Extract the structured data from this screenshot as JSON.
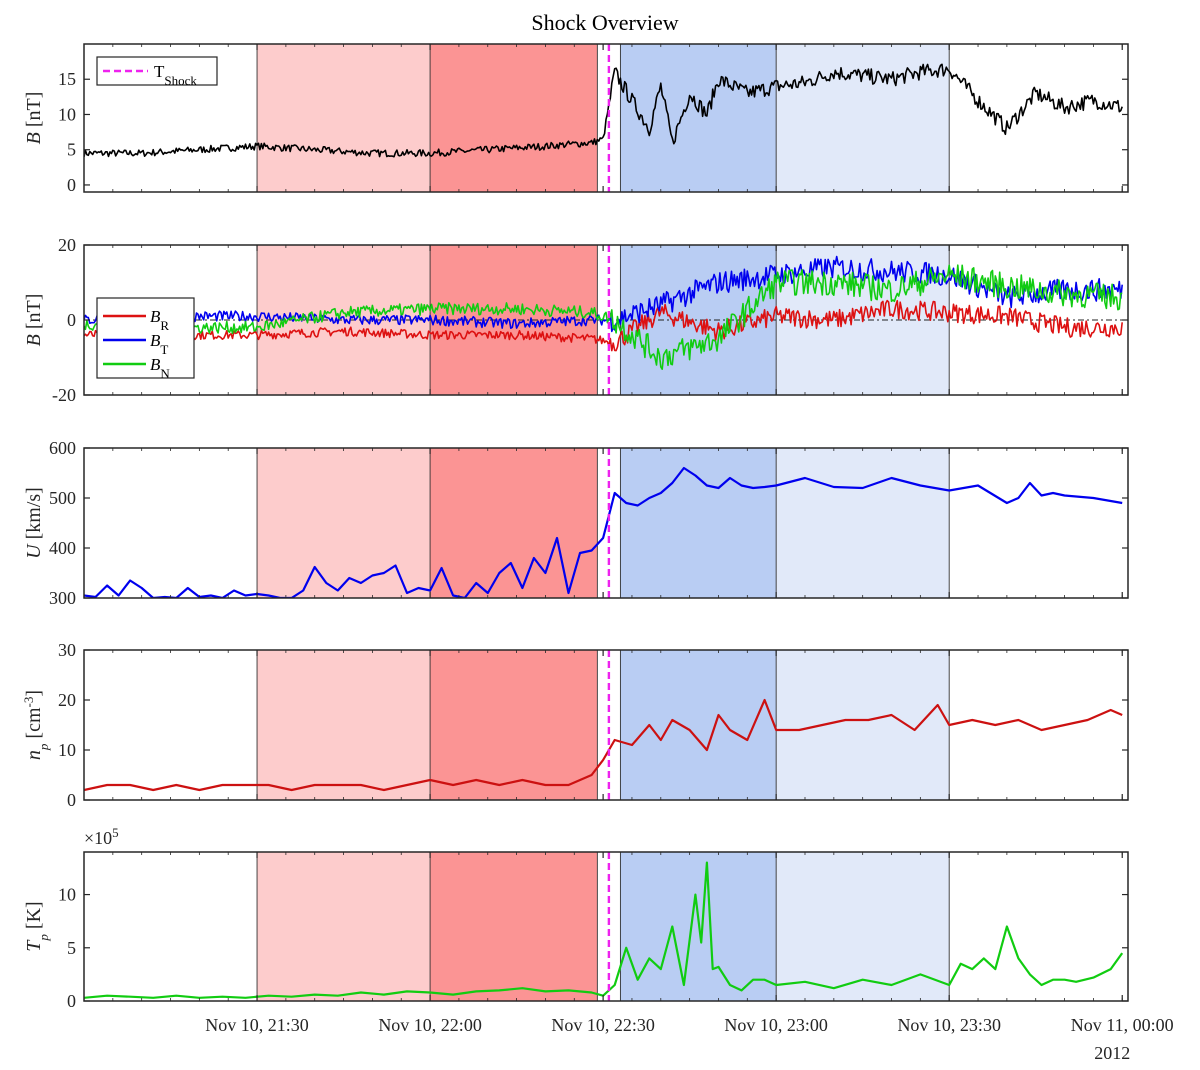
{
  "chart_data": {
    "type": "line",
    "title": "Shock Overview",
    "x_range": [
      "2012-11-10 21:00",
      "2012-11-11 00:01"
    ],
    "x_ticks": [
      {
        "t": "2012-11-10 21:30",
        "label": "Nov 10, 21:30"
      },
      {
        "t": "2012-11-10 22:00",
        "label": "Nov 10, 22:00"
      },
      {
        "t": "2012-11-10 22:30",
        "label": "Nov 10, 22:30"
      },
      {
        "t": "2012-11-10 23:00",
        "label": "Nov 10, 23:00"
      },
      {
        "t": "2012-11-10 23:30",
        "label": "Nov 10, 23:30"
      },
      {
        "t": "2012-11-11 00:00",
        "label": "Nov 11, 00:00"
      }
    ],
    "x_year_label": "2012",
    "shock_time": "2012-11-10 22:31",
    "shock_legend": "T",
    "shock_legend_sub": "Shock",
    "shock_color": "#ee22ee",
    "regions": [
      {
        "start": "2012-11-10 21:30",
        "end": "2012-11-10 22:00",
        "color": "#fdcccc"
      },
      {
        "start": "2012-11-10 22:00",
        "end": "2012-11-10 22:29",
        "color": "#fb9494"
      },
      {
        "start": "2012-11-10 22:33",
        "end": "2012-11-10 23:00",
        "color": "#b9cdf3"
      },
      {
        "start": "2012-11-10 23:00",
        "end": "2012-11-10 23:30",
        "color": "#e1e9f9"
      }
    ],
    "panels": [
      {
        "id": "btot",
        "ylabel": "B",
        "yunit": "[nT]",
        "ylim": [
          -1,
          20
        ],
        "yticks": [
          0,
          5,
          10,
          15
        ],
        "series": [
          {
            "color": "#000000",
            "noise": 0.5,
            "times": [
              "21:00",
              "21:10",
              "21:20",
              "21:30",
              "21:40",
              "21:50",
              "22:00",
              "22:10",
              "22:20",
              "22:28",
              "22:30",
              "22:32",
              "22:35",
              "22:38",
              "22:40",
              "22:42",
              "22:45",
              "22:48",
              "22:50",
              "22:55",
              "23:00",
              "23:05",
              "23:10",
              "23:15",
              "23:20",
              "23:25",
              "23:30",
              "23:35",
              "23:40",
              "23:45",
              "23:50",
              "23:55",
              "00:00"
            ],
            "values": [
              4.5,
              4.5,
              5,
              5.5,
              5,
              4.5,
              4.5,
              5,
              5.5,
              6,
              6.5,
              16,
              12,
              8,
              14,
              6,
              13,
              10,
              15,
              13,
              14,
              14.5,
              16,
              15.5,
              15,
              16,
              16.5,
              12,
              8,
              13,
              11,
              12,
              11
            ]
          }
        ]
      },
      {
        "id": "bcomp",
        "ylabel": "B",
        "yunit": "[nT]",
        "ylim": [
          -20,
          20
        ],
        "yticks": [
          -20,
          0,
          20
        ],
        "zero_line": true,
        "series": [
          {
            "name": "B",
            "sub": "R",
            "color": "#dd1111",
            "noise": 1.2,
            "times": [
              "21:00",
              "21:15",
              "21:30",
              "21:45",
              "22:00",
              "22:15",
              "22:28",
              "22:32",
              "22:40",
              "22:50",
              "23:00",
              "23:10",
              "23:20",
              "23:30",
              "23:40",
              "23:50",
              "00:00"
            ],
            "values": [
              -4,
              -4,
              -4,
              -3,
              -4,
              -4,
              -5,
              -6,
              2,
              -3,
              1,
              0,
              3,
              2,
              1,
              -2,
              -2
            ]
          },
          {
            "name": "B",
            "sub": "T",
            "color": "#0000ee",
            "noise": 1.4,
            "times": [
              "21:00",
              "21:15",
              "21:30",
              "21:45",
              "22:00",
              "22:15",
              "22:28",
              "22:32",
              "22:40",
              "22:50",
              "23:00",
              "23:10",
              "23:20",
              "23:30",
              "23:40",
              "23:50",
              "00:00"
            ],
            "values": [
              0,
              1,
              1,
              0,
              0,
              -1,
              0,
              0,
              4,
              10,
              12,
              14,
              13,
              12,
              6,
              8,
              8
            ]
          },
          {
            "name": "B",
            "sub": "N",
            "color": "#11cc11",
            "noise": 1.6,
            "times": [
              "21:00",
              "21:15",
              "21:30",
              "21:45",
              "22:00",
              "22:15",
              "22:28",
              "22:32",
              "22:40",
              "22:50",
              "23:00",
              "23:10",
              "23:20",
              "23:30",
              "23:40",
              "23:50",
              "00:00"
            ],
            "values": [
              -1,
              -2,
              -2,
              2,
              3,
              3,
              2,
              0,
              -10,
              -5,
              10,
              10,
              8,
              12,
              9,
              7,
              6
            ]
          }
        ]
      },
      {
        "id": "speed",
        "ylabel": "U",
        "yunit": "[km/s]",
        "ylim": [
          300,
          600
        ],
        "yticks": [
          300,
          400,
          500,
          600
        ],
        "series": [
          {
            "color": "#0000ee",
            "noise": 0,
            "times": [
              "21:00",
              "21:02",
              "21:04",
              "21:06",
              "21:08",
              "21:10",
              "21:12",
              "21:14",
              "21:16",
              "21:18",
              "21:20",
              "21:22",
              "21:24",
              "21:26",
              "21:28",
              "21:30",
              "21:32",
              "21:34",
              "21:36",
              "21:38",
              "21:40",
              "21:42",
              "21:44",
              "21:46",
              "21:48",
              "21:50",
              "21:52",
              "21:54",
              "21:56",
              "21:58",
              "22:00",
              "22:02",
              "22:04",
              "22:06",
              "22:08",
              "22:10",
              "22:12",
              "22:14",
              "22:16",
              "22:18",
              "22:20",
              "22:22",
              "22:24",
              "22:26",
              "22:28",
              "22:30",
              "22:32",
              "22:34",
              "22:36",
              "22:38",
              "22:40",
              "22:42",
              "22:44",
              "22:46",
              "22:48",
              "22:50",
              "22:52",
              "22:54",
              "22:56",
              "22:58",
              "23:00",
              "23:05",
              "23:10",
              "23:15",
              "23:20",
              "23:25",
              "23:30",
              "23:35",
              "23:40",
              "23:42",
              "23:44",
              "23:46",
              "23:48",
              "23:50",
              "23:55",
              "00:00"
            ],
            "values": [
              305,
              302,
              325,
              305,
              335,
              320,
              300,
              302,
              300,
              320,
              302,
              305,
              300,
              315,
              305,
              308,
              305,
              300,
              300,
              315,
              362,
              330,
              315,
              340,
              330,
              345,
              350,
              365,
              310,
              320,
              315,
              360,
              305,
              300,
              330,
              310,
              350,
              370,
              320,
              380,
              350,
              420,
              310,
              390,
              395,
              420,
              510,
              490,
              485,
              500,
              510,
              530,
              560,
              545,
              525,
              520,
              540,
              525,
              520,
              522,
              525,
              540,
              522,
              520,
              540,
              525,
              515,
              525,
              490,
              500,
              530,
              505,
              510,
              505,
              500,
              490
            ]
          }
        ]
      },
      {
        "id": "density",
        "ylabel": "n",
        "ylabel_sub": "p",
        "yunit": "[cm",
        "yunit_sup": "-3",
        "yunit_tail": "]",
        "ylim": [
          0,
          30
        ],
        "yticks": [
          0,
          10,
          20,
          30
        ],
        "series": [
          {
            "color": "#cc1111",
            "noise": 0,
            "times": [
              "21:00",
              "21:04",
              "21:08",
              "21:12",
              "21:16",
              "21:20",
              "21:24",
              "21:28",
              "21:32",
              "21:36",
              "21:40",
              "21:44",
              "21:48",
              "21:52",
              "21:56",
              "22:00",
              "22:04",
              "22:08",
              "22:12",
              "22:16",
              "22:20",
              "22:24",
              "22:28",
              "22:30",
              "22:32",
              "22:35",
              "22:38",
              "22:40",
              "22:42",
              "22:45",
              "22:48",
              "22:50",
              "22:52",
              "22:55",
              "22:58",
              "23:00",
              "23:04",
              "23:08",
              "23:12",
              "23:16",
              "23:20",
              "23:24",
              "23:28",
              "23:30",
              "23:34",
              "23:38",
              "23:42",
              "23:46",
              "23:50",
              "23:54",
              "23:58",
              "00:00"
            ],
            "values": [
              2,
              3,
              3,
              2,
              3,
              2,
              3,
              3,
              3,
              2,
              3,
              3,
              3,
              2,
              3,
              4,
              3,
              4,
              3,
              4,
              3,
              3,
              5,
              8,
              12,
              11,
              15,
              12,
              16,
              14,
              10,
              17,
              14,
              12,
              20,
              14,
              14,
              15,
              16,
              16,
              17,
              14,
              19,
              15,
              16,
              15,
              16,
              14,
              15,
              16,
              18,
              17
            ]
          }
        ]
      },
      {
        "id": "temp",
        "ylabel": "T",
        "ylabel_sub": "p",
        "yunit": "[K]",
        "ylim": [
          0,
          14
        ],
        "yticks": [
          0,
          5,
          10
        ],
        "exponent_base": "×10",
        "exponent": "5",
        "series": [
          {
            "color": "#11cc11",
            "noise": 0,
            "times": [
              "21:00",
              "21:04",
              "21:08",
              "21:12",
              "21:16",
              "21:20",
              "21:24",
              "21:28",
              "21:32",
              "21:36",
              "21:40",
              "21:44",
              "21:48",
              "21:52",
              "21:56",
              "22:00",
              "22:04",
              "22:08",
              "22:12",
              "22:16",
              "22:20",
              "22:24",
              "22:28",
              "22:30",
              "22:32",
              "22:34",
              "22:36",
              "22:38",
              "22:40",
              "22:42",
              "22:44",
              "22:46",
              "22:47",
              "22:48",
              "22:49",
              "22:50",
              "22:52",
              "22:54",
              "22:56",
              "22:58",
              "23:00",
              "23:05",
              "23:10",
              "23:15",
              "23:20",
              "23:25",
              "23:30",
              "23:32",
              "23:34",
              "23:36",
              "23:38",
              "23:40",
              "23:42",
              "23:44",
              "23:46",
              "23:48",
              "23:50",
              "23:52",
              "23:55",
              "23:58",
              "00:00"
            ],
            "values": [
              0.3,
              0.5,
              0.4,
              0.3,
              0.5,
              0.3,
              0.4,
              0.3,
              0.5,
              0.4,
              0.6,
              0.5,
              0.8,
              0.6,
              0.9,
              0.8,
              0.6,
              0.9,
              1.0,
              1.2,
              0.9,
              1.0,
              0.8,
              0.5,
              1.5,
              5.0,
              2.0,
              4.0,
              3.0,
              7.0,
              1.5,
              10.0,
              5.5,
              13.0,
              3.0,
              3.2,
              1.5,
              1.0,
              2.0,
              2.0,
              1.5,
              1.8,
              1.2,
              2.0,
              1.5,
              2.5,
              1.5,
              3.5,
              3.0,
              4.0,
              3.0,
              7.0,
              4.0,
              2.5,
              1.5,
              2.0,
              2.0,
              1.8,
              2.2,
              3.0,
              4.5
            ]
          }
        ]
      }
    ]
  }
}
